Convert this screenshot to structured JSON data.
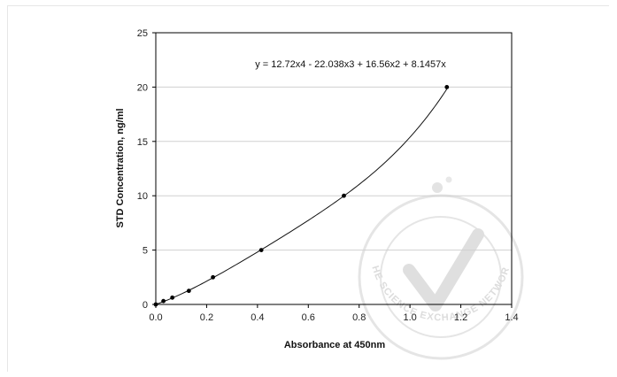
{
  "chart_data": {
    "type": "scatter",
    "title": "",
    "xlabel": "Absorbance at 450nm",
    "ylabel": "STD Concentration, ng/ml",
    "xlim": [
      0,
      1.4
    ],
    "ylim": [
      0,
      25
    ],
    "xticks": [
      0.0,
      0.2,
      0.4,
      0.6,
      0.8,
      1.0,
      1.2,
      1.4
    ],
    "xtick_labels": [
      "0.0",
      "0.2",
      "0.4",
      "0.6",
      "0.8",
      "1.0",
      "1.2",
      "1.4"
    ],
    "yticks": [
      0,
      5,
      10,
      15,
      20,
      25
    ],
    "ytick_labels": [
      "0",
      "5",
      "10",
      "15",
      "20",
      "25"
    ],
    "grid": "horizontal",
    "points": [
      {
        "x": 0.0,
        "y": 0
      },
      {
        "x": 0.03,
        "y": 0.31
      },
      {
        "x": 0.065,
        "y": 0.625
      },
      {
        "x": 0.13,
        "y": 1.25
      },
      {
        "x": 0.225,
        "y": 2.5
      },
      {
        "x": 0.415,
        "y": 5
      },
      {
        "x": 0.74,
        "y": 10
      },
      {
        "x": 1.145,
        "y": 20
      }
    ],
    "trendline": {
      "type": "polynomial",
      "coefficients": {
        "x4": 12.72,
        "x3": -22.038,
        "x2": 16.56,
        "x1": 8.1457,
        "x0": 0
      },
      "x_range": [
        0,
        1.145
      ],
      "equation_label": "y = 12.72x4 - 22.038x3 + 16.56x2 + 8.1457x"
    }
  },
  "watermark": {
    "text": "THE SCIENCE EXCHANGE NETWORK",
    "color": "#d9d9d9"
  }
}
